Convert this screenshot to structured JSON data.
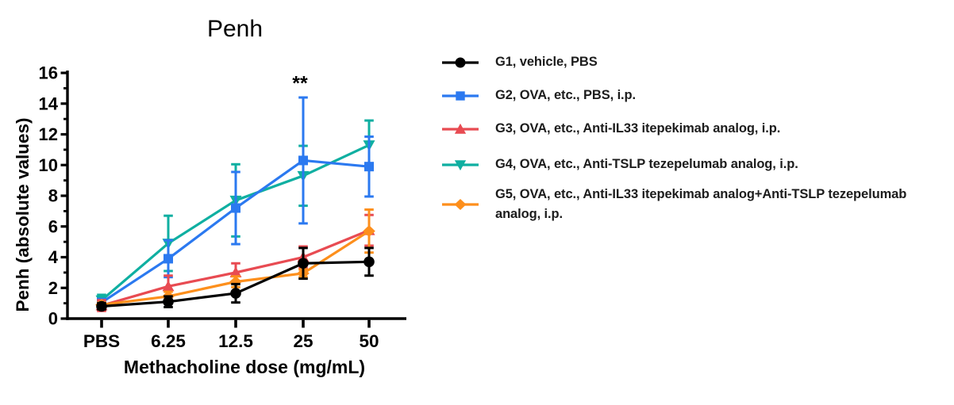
{
  "chart_data": {
    "type": "line",
    "title": "Penh",
    "xlabel": "Methacholine dose (mg/mL)",
    "ylabel": "Penh (absolute values)",
    "categories": [
      "PBS",
      "6.25",
      "12.5",
      "25",
      "50"
    ],
    "ylim": [
      0,
      16
    ],
    "yticks": [
      0,
      2,
      4,
      6,
      8,
      10,
      12,
      14,
      16
    ],
    "grid": false,
    "legend_position": "right",
    "series": [
      {
        "name": "G1, vehicle, PBS",
        "color": "#000000",
        "marker": "circle",
        "values": [
          0.8,
          1.1,
          1.65,
          3.6,
          3.7
        ],
        "error": [
          0.2,
          0.35,
          0.6,
          1.0,
          0.9
        ]
      },
      {
        "name": "G2, OVA, etc., PBS, i.p.",
        "color": "#2b79f0",
        "marker": "square",
        "values": [
          1.05,
          3.9,
          7.2,
          10.3,
          9.9
        ],
        "error": [
          0.2,
          1.2,
          2.35,
          4.1,
          1.95
        ]
      },
      {
        "name": "G3, OVA, etc., Anti-IL33 itepekimab analog, i.p.",
        "color": "#e84b52",
        "marker": "triangle-up",
        "values": [
          0.85,
          2.1,
          3.0,
          4.0,
          5.75
        ],
        "error": [
          0.35,
          0.7,
          0.6,
          0.7,
          1.0
        ]
      },
      {
        "name": "G4, OVA, etc., Anti-TSLP tezepelumab analog, i.p.",
        "color": "#0fafa1",
        "marker": "triangle-down",
        "values": [
          1.2,
          4.9,
          7.7,
          9.3,
          11.3
        ],
        "error": [
          0.35,
          1.8,
          2.35,
          1.95,
          1.6
        ]
      },
      {
        "name": "G5, OVA, etc., Anti-IL33 itepekimab analog+Anti-TSLP tezepelumab analog, i.p.",
        "color": "#fd8f1c",
        "marker": "diamond",
        "values": [
          0.9,
          1.45,
          2.4,
          2.95,
          5.7
        ],
        "error": [
          0.15,
          0.3,
          0.35,
          0.25,
          1.4
        ]
      }
    ],
    "annotations": [
      {
        "text": "**",
        "category": "25",
        "y": 15.3
      }
    ]
  }
}
